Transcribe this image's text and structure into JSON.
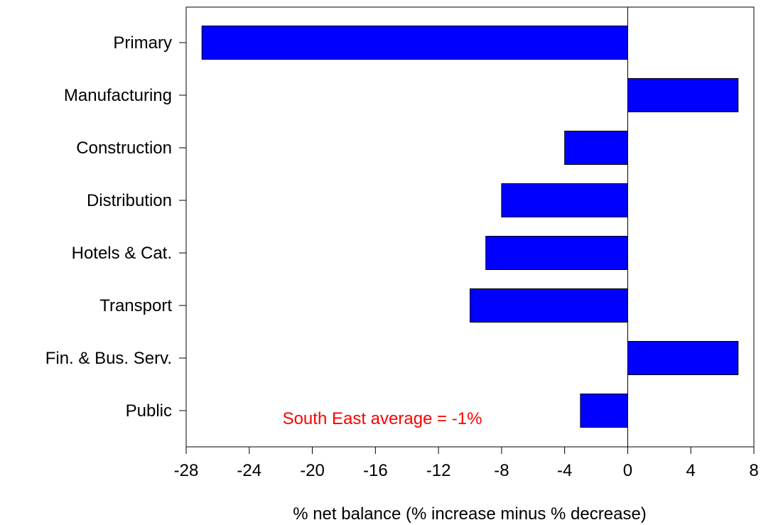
{
  "chart_data": {
    "type": "bar",
    "orientation": "horizontal",
    "categories": [
      "Primary",
      "Manufacturing",
      "Construction",
      "Distribution",
      "Hotels & Cat.",
      "Transport",
      "Fin. & Bus. Serv.",
      "Public"
    ],
    "values": [
      -27,
      7,
      -4,
      -8,
      -9,
      -10,
      7,
      -3
    ],
    "xlabel": "% net balance (% increase minus % decrease)",
    "ylabel": "",
    "xlim": [
      -28,
      8
    ],
    "xticks": [
      "-28",
      "-24",
      "-20",
      "-16",
      "-12",
      "-8",
      "-4",
      "0",
      "4",
      "8"
    ],
    "annotation": "South East average = -1%",
    "grid": false,
    "legend": "none",
    "colors": {
      "bar_fill": "#0000ff",
      "bar_stroke": "#000000",
      "annotation": "#ff0000",
      "zero_line": "#000000"
    }
  }
}
